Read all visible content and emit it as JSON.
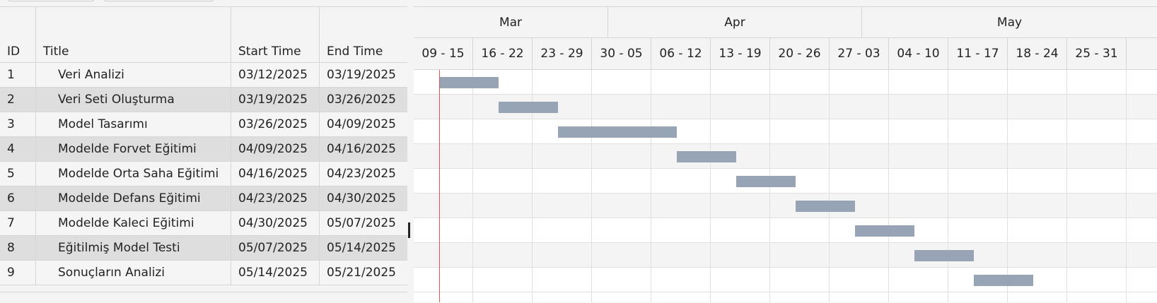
{
  "grid": {
    "columns": [
      {
        "key": "id",
        "label": "ID"
      },
      {
        "key": "title",
        "label": "Title"
      },
      {
        "key": "start",
        "label": "Start Time"
      },
      {
        "key": "end",
        "label": "End Time"
      }
    ],
    "rows": [
      {
        "id": "1",
        "title": "Veri Analizi",
        "start": "03/12/2025",
        "end": "03/19/2025"
      },
      {
        "id": "2",
        "title": "Veri Seti Oluşturma",
        "start": "03/19/2025",
        "end": "03/26/2025"
      },
      {
        "id": "3",
        "title": "Model Tasarımı",
        "start": "03/26/2025",
        "end": "04/09/2025"
      },
      {
        "id": "4",
        "title": "Modelde Forvet Eğitimi",
        "start": "04/09/2025",
        "end": "04/16/2025"
      },
      {
        "id": "5",
        "title": "Modelde Orta Saha Eğitimi",
        "start": "04/16/2025",
        "end": "04/23/2025"
      },
      {
        "id": "6",
        "title": "Modelde Defans Eğitimi",
        "start": "04/23/2025",
        "end": "04/30/2025"
      },
      {
        "id": "7",
        "title": "Modelde Kaleci Eğitimi",
        "start": "04/30/2025",
        "end": "05/07/2025"
      },
      {
        "id": "8",
        "title": "Eğitilmiş Model Testi",
        "start": "05/07/2025",
        "end": "05/14/2025"
      },
      {
        "id": "9",
        "title": "Sonuçların Analizi",
        "start": "05/14/2025",
        "end": "05/21/2025"
      }
    ]
  },
  "timeline": {
    "months": [
      "Mar",
      "Apr",
      "May"
    ],
    "weeks": [
      "09 - 15",
      "16 - 22",
      "23 - 29",
      "30 - 05",
      "06 - 12",
      "13 - 19",
      "20 - 26",
      "27 - 03",
      "04 - 10",
      "11 - 17",
      "18 - 24",
      "25 - 31"
    ],
    "start_date": "03/09/2025",
    "today": "03/12/2025",
    "bar_color": "#97a4b6",
    "today_line_color": "#e35454"
  }
}
